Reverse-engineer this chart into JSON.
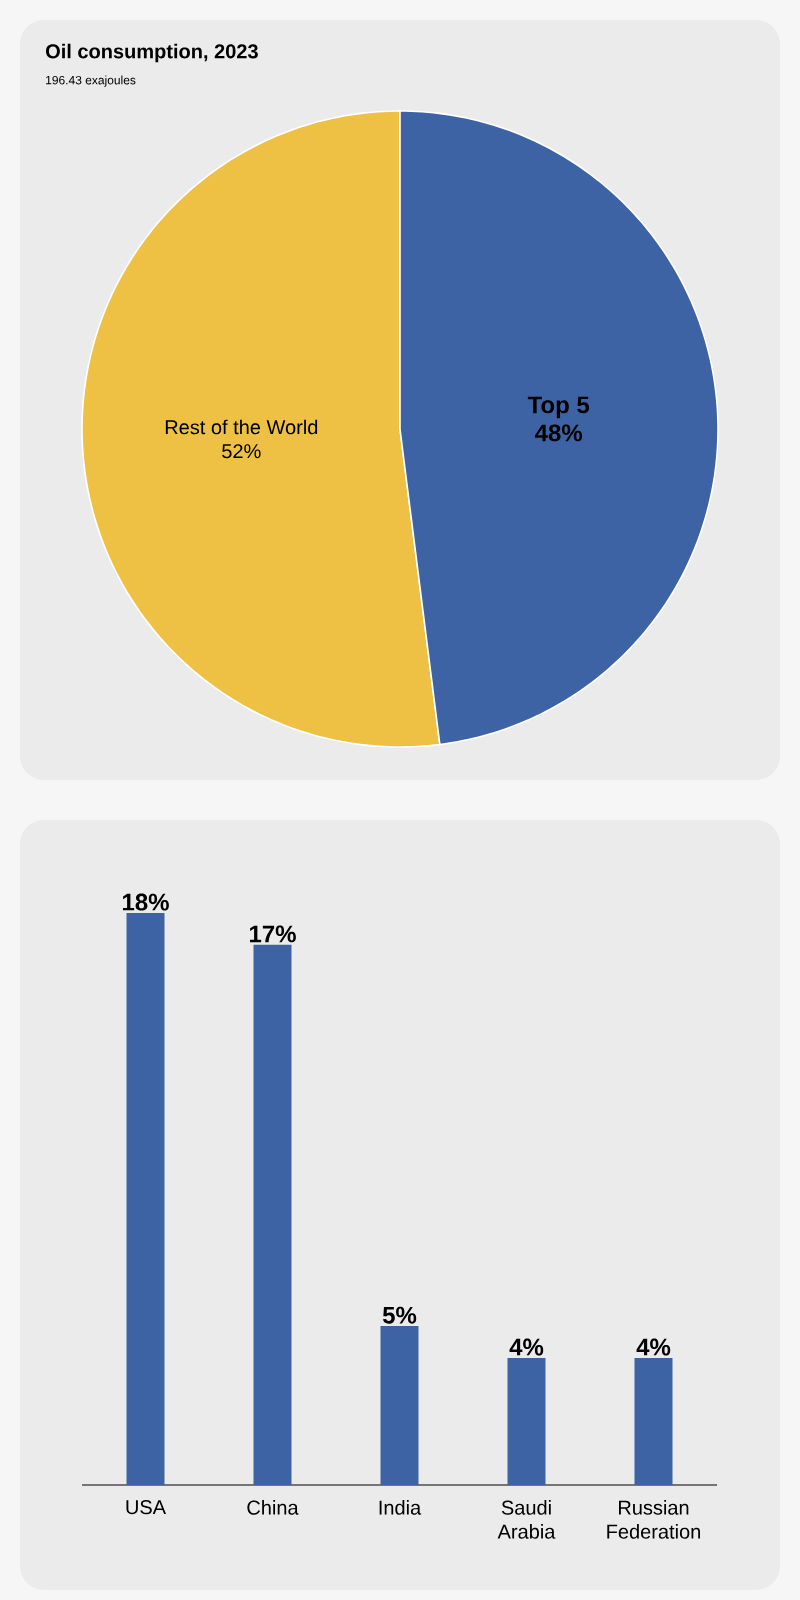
{
  "chart_data": [
    {
      "type": "pie",
      "title": "Oil consumption, 2023",
      "subtitle": "196.43 exajoules",
      "categories": [
        "Rest of the World",
        "Top 5"
      ],
      "values": [
        52,
        48
      ],
      "colors": [
        "#eec043",
        "#3e63a5"
      ],
      "value_labels": [
        "52%",
        "48%"
      ]
    },
    {
      "type": "bar",
      "categories": [
        "USA",
        "China",
        "India",
        "Saudi Arabia",
        "Russian Federation"
      ],
      "values": [
        18,
        17,
        5,
        4,
        4
      ],
      "color": "#3e63a5",
      "value_labels": [
        "18%",
        "17%",
        "5%",
        "4%",
        "4%"
      ]
    }
  ]
}
